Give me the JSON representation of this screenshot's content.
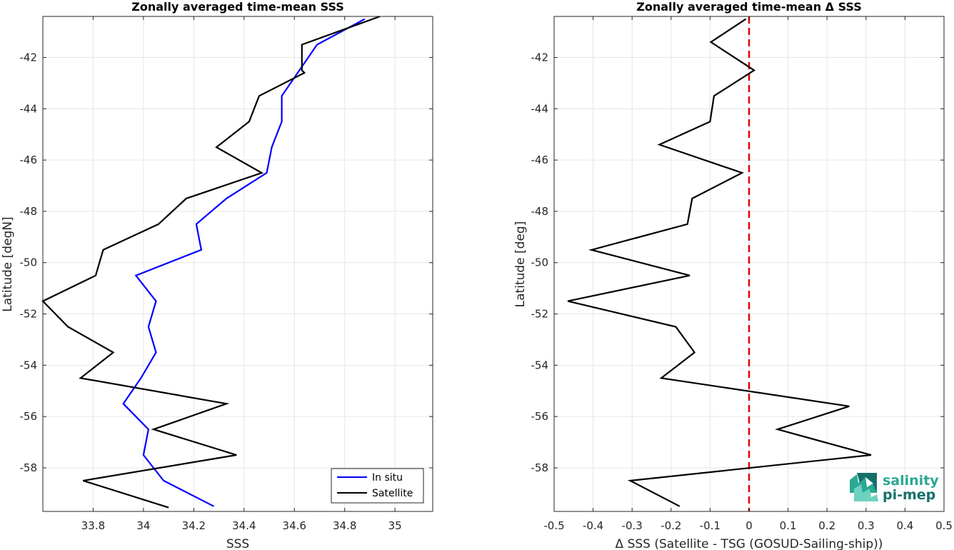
{
  "chart_data": [
    {
      "type": "line",
      "title": "Zonally averaged time-mean SSS",
      "xlabel": "SSS",
      "ylabel": "Latitude [degN]",
      "xlim": [
        33.6,
        35.15
      ],
      "ylim": [
        -59.7,
        -40.4
      ],
      "xticks": [
        33.8,
        34,
        34.2,
        34.4,
        34.6,
        34.8,
        35
      ],
      "xtick_labels": [
        "33.8",
        "34",
        "34.2",
        "34.4",
        "34.6",
        "34.8",
        "35"
      ],
      "yticks": [
        -42,
        -44,
        -46,
        -48,
        -50,
        -52,
        -54,
        -56,
        -58
      ],
      "ytick_labels": [
        "-42",
        "-44",
        "-46",
        "-48",
        "-50",
        "-52",
        "-54",
        "-56",
        "-58"
      ],
      "grid": true,
      "legend": "bottom-right",
      "series": [
        {
          "name": "In situ",
          "color": "#0000ff",
          "x": [
            34.88,
            34.69,
            34.55,
            34.55,
            34.51,
            34.49,
            34.33,
            34.21,
            34.23,
            33.97,
            34.05,
            34.02,
            34.05,
            33.99,
            33.92,
            34.02,
            34.0,
            34.08,
            34.28
          ],
          "y": [
            -40.5,
            -41.5,
            -43.5,
            -44.5,
            -45.5,
            -46.5,
            -47.5,
            -48.5,
            -49.5,
            -50.5,
            -51.5,
            -52.5,
            -53.5,
            -54.5,
            -55.5,
            -56.5,
            -57.5,
            -58.5,
            -59.5
          ]
        },
        {
          "name": "Satellite",
          "color": "#000000",
          "x": [
            34.94,
            34.63,
            34.63,
            34.64,
            34.46,
            34.42,
            34.29,
            34.47,
            34.17,
            34.06,
            33.84,
            33.81,
            33.6,
            33.7,
            33.88,
            33.75,
            34.33,
            34.04,
            34.37,
            33.76,
            34.1
          ],
          "y": [
            -40.4,
            -41.5,
            -42.5,
            -42.6,
            -43.5,
            -44.5,
            -45.5,
            -46.5,
            -47.5,
            -48.5,
            -49.5,
            -50.5,
            -51.5,
            -52.5,
            -53.5,
            -54.5,
            -55.5,
            -56.5,
            -57.5,
            -58.5,
            -59.55
          ]
        }
      ]
    },
    {
      "type": "line",
      "title": "Zonally averaged time-mean Δ SSS",
      "xlabel": "Δ SSS (Satellite - TSG (GOSUD-Sailing-ship))",
      "ylabel": "Latitude [deg]",
      "xlim": [
        -0.5,
        0.5
      ],
      "ylim": [
        -59.7,
        -40.4
      ],
      "xticks": [
        -0.5,
        -0.4,
        -0.3,
        -0.2,
        -0.1,
        0,
        0.1,
        0.2,
        0.3,
        0.4,
        0.5
      ],
      "xtick_labels": [
        "-0.5",
        "-0.4",
        "-0.3",
        "-0.2",
        "-0.1",
        "0",
        "0.1",
        "0.2",
        "0.3",
        "0.4",
        "0.5"
      ],
      "yticks": [
        -42,
        -44,
        -46,
        -48,
        -50,
        -52,
        -54,
        -56,
        -58
      ],
      "ytick_labels": [
        "-42",
        "-44",
        "-46",
        "-48",
        "-50",
        "-52",
        "-54",
        "-56",
        "-58"
      ],
      "grid": true,
      "zero_line": {
        "x": 0,
        "color": "#e60000",
        "style": "dashed"
      },
      "series": [
        {
          "color": "#000000",
          "x": [
            -0.008,
            -0.098,
            0.013,
            -0.09,
            -0.1,
            -0.23,
            -0.018,
            -0.146,
            -0.158,
            -0.404,
            -0.152,
            -0.465,
            -0.188,
            -0.14,
            -0.225,
            0.257,
            0.073,
            0.313,
            -0.305,
            -0.178
          ],
          "y": [
            -40.5,
            -41.4,
            -42.5,
            -43.5,
            -44.5,
            -45.4,
            -46.5,
            -47.5,
            -48.5,
            -49.5,
            -50.5,
            -51.5,
            -52.5,
            -53.5,
            -54.5,
            -55.6,
            -56.5,
            -57.5,
            -58.5,
            -59.5
          ]
        }
      ]
    }
  ],
  "logo": {
    "line1": "salinity",
    "line2": "pi-mep",
    "colors": [
      "#6fd1bf",
      "#2aa893",
      "#15706a"
    ]
  }
}
